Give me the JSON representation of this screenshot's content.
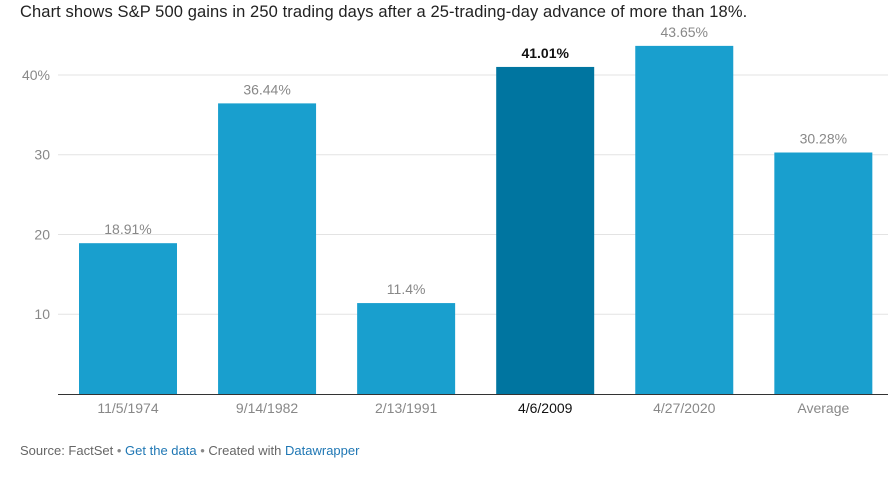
{
  "title": "Chart shows S&P 500 gains in 250 trading days after a 25-trading-day advance of more than 18%.",
  "chart_data": {
    "type": "bar",
    "categories": [
      "11/5/1974",
      "9/14/1982",
      "2/13/1991",
      "4/6/2009",
      "4/27/2020",
      "Average"
    ],
    "values": [
      18.91,
      36.44,
      11.4,
      41.01,
      43.65,
      30.28
    ],
    "data_labels": [
      "18.91%",
      "36.44%",
      "11.4%",
      "41.01%",
      "43.65%",
      "30.28%"
    ],
    "highlighted_index": 3,
    "yticks": [
      10,
      20,
      30,
      40
    ],
    "ytick_labels": [
      "10",
      "20",
      "30",
      "40%"
    ],
    "ylim": [
      0,
      40.5
    ],
    "grid": true,
    "colors": {
      "bar": "#199fce",
      "highlight": "#0075a0"
    }
  },
  "footer": {
    "source_text": "Source: FactSet",
    "separator": "•",
    "get_data_link": "Get the data",
    "created_with_text": "Created with",
    "datawrapper_link": "Datawrapper"
  }
}
